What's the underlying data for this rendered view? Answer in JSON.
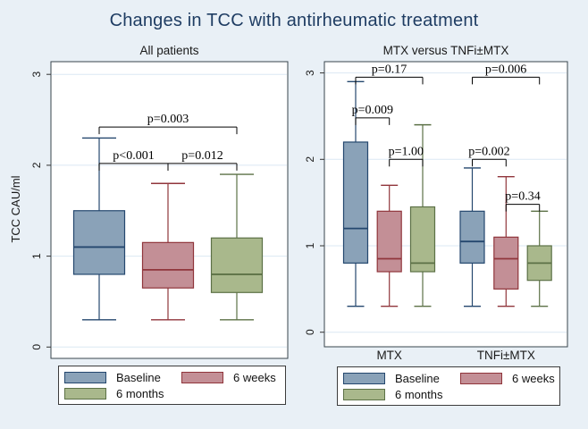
{
  "title": "Changes in TCC with antirheumatic treatment",
  "colors": {
    "background": "#e9f0f6",
    "panel": "#ffffff",
    "panel_border": "#38444c",
    "grid": "#dbe8f3",
    "title": "#1f3d63",
    "annotation": "#000000",
    "series": {
      "baseline": {
        "fill": "#8aa2b8",
        "stroke": "#24476e"
      },
      "weeks6": {
        "fill": "#c38f96",
        "stroke": "#90353b"
      },
      "months6": {
        "fill": "#a9b88c",
        "stroke": "#5c7146"
      }
    }
  },
  "legend": {
    "items": [
      {
        "series": "baseline",
        "label": "Baseline"
      },
      {
        "series": "weeks6",
        "label": "6 weeks"
      },
      {
        "series": "months6",
        "label": "6 months"
      }
    ]
  },
  "chart_data": [
    {
      "type": "boxplot",
      "title": "All patients",
      "ylabel": "TCC CAU/ml",
      "ylim": [
        0,
        3
      ],
      "yticks": [
        0,
        1,
        2,
        3
      ],
      "grid": true,
      "boxes": [
        {
          "series": "baseline",
          "label": "Baseline",
          "low": 0.3,
          "q1": 0.8,
          "median": 1.1,
          "q3": 1.5,
          "high": 2.3
        },
        {
          "series": "weeks6",
          "label": "6 weeks",
          "low": 0.3,
          "q1": 0.65,
          "median": 0.85,
          "q3": 1.15,
          "high": 1.8
        },
        {
          "series": "months6",
          "label": "6 months",
          "low": 0.3,
          "q1": 0.6,
          "median": 0.8,
          "q3": 1.2,
          "high": 1.9
        }
      ],
      "annotations": [
        {
          "label": "p=0.003",
          "from": 0,
          "to": 2,
          "y": 2.42
        },
        {
          "label": "p<0.001",
          "from": 0,
          "to": 1,
          "y": 2.02
        },
        {
          "label": "p=0.012",
          "from": 1,
          "to": 2,
          "y": 2.02
        }
      ]
    },
    {
      "type": "boxplot",
      "title": "MTX versus TNFi±MTX",
      "ylabel": "",
      "ylim": [
        0,
        3
      ],
      "yticks": [
        0,
        1,
        2,
        3
      ],
      "grid": true,
      "xcategories": [
        "MTX",
        "TNFi±MTX"
      ],
      "boxes": [
        {
          "series": "baseline",
          "group": "MTX",
          "label": "Baseline",
          "low": 0.3,
          "q1": 0.8,
          "median": 1.2,
          "q3": 2.2,
          "high": 2.9
        },
        {
          "series": "weeks6",
          "group": "MTX",
          "label": "6 weeks",
          "low": 0.3,
          "q1": 0.7,
          "median": 0.85,
          "q3": 1.4,
          "high": 1.7
        },
        {
          "series": "months6",
          "group": "MTX",
          "label": "6 months",
          "low": 0.3,
          "q1": 0.7,
          "median": 0.8,
          "q3": 1.45,
          "high": 2.4
        },
        {
          "series": "baseline",
          "group": "TNFi±MTX",
          "label": "Baseline",
          "low": 0.3,
          "q1": 0.8,
          "median": 1.05,
          "q3": 1.4,
          "high": 1.9
        },
        {
          "series": "weeks6",
          "group": "TNFi±MTX",
          "label": "6 weeks",
          "low": 0.3,
          "q1": 0.5,
          "median": 0.85,
          "q3": 1.1,
          "high": 1.8
        },
        {
          "series": "months6",
          "group": "TNFi±MTX",
          "label": "6 months",
          "low": 0.3,
          "q1": 0.6,
          "median": 0.8,
          "q3": 1.0,
          "high": 1.4
        }
      ],
      "annotations": [
        {
          "label": "p=0.17",
          "from": 0,
          "to": 2,
          "y": 2.95
        },
        {
          "label": "p=0.006",
          "from": 3,
          "to": 5,
          "y": 2.95
        },
        {
          "label": "p=0.009",
          "from": 0,
          "to": 1,
          "y": 2.48
        },
        {
          "label": "p=1.00",
          "from": 1,
          "to": 2,
          "y": 2.0
        },
        {
          "label": "p=0.002",
          "from": 3,
          "to": 4,
          "y": 2.0
        },
        {
          "label": "p=0.34",
          "from": 4,
          "to": 5,
          "y": 1.48
        }
      ]
    }
  ]
}
